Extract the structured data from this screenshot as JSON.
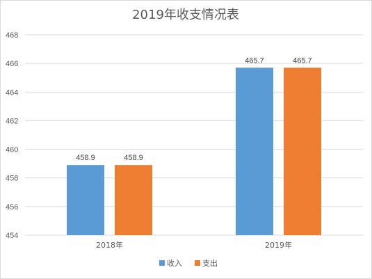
{
  "chart_data": {
    "type": "bar",
    "title": "2019年收支情况表",
    "categories": [
      "2018年",
      "2019年"
    ],
    "series": [
      {
        "name": "收入",
        "values": [
          458.9,
          465.7
        ],
        "color": "#5b9bd5"
      },
      {
        "name": "支出",
        "values": [
          458.9,
          465.7
        ],
        "color": "#ed7d31"
      }
    ],
    "ylim": [
      454,
      468
    ],
    "yticks": [
      454,
      456,
      458,
      460,
      462,
      464,
      466,
      468
    ],
    "grid": true,
    "legend_position": "bottom",
    "data_labels": true
  }
}
